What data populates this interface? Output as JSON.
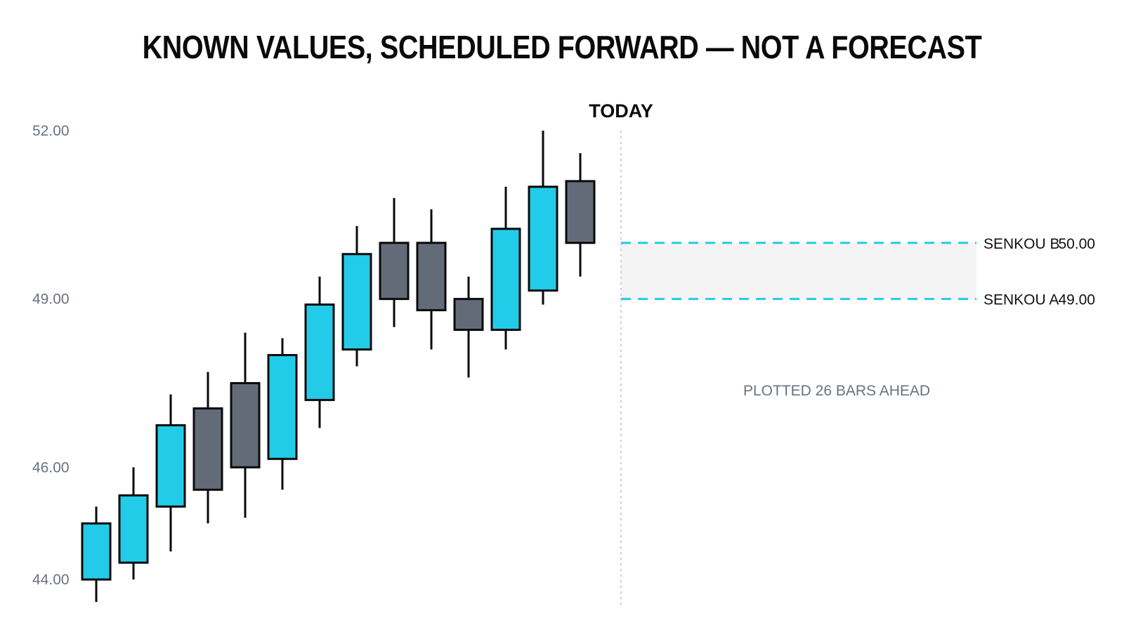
{
  "chart_data": {
    "type": "candlestick",
    "title": "KNOWN VALUES, SCHEDULED FORWARD — NOT A FORECAST",
    "ylim": [
      43.6,
      52.0
    ],
    "y_ticks": [
      {
        "value": 52.0,
        "label": "52.00"
      },
      {
        "value": 49.0,
        "label": "49.00"
      },
      {
        "value": 46.0,
        "label": "46.00"
      },
      {
        "value": 44.0,
        "label": "44.00"
      }
    ],
    "grid": false,
    "candles": [
      {
        "open": 44.0,
        "close": 45.0,
        "high": 45.3,
        "low": 43.6
      },
      {
        "open": 44.3,
        "close": 45.5,
        "high": 46.0,
        "low": 44.0
      },
      {
        "open": 45.3,
        "close": 46.75,
        "high": 47.3,
        "low": 44.5
      },
      {
        "open": 47.05,
        "close": 45.6,
        "high": 47.7,
        "low": 45.0
      },
      {
        "open": 47.5,
        "close": 46.0,
        "high": 48.4,
        "low": 45.1
      },
      {
        "open": 46.15,
        "close": 48.0,
        "high": 48.3,
        "low": 45.6
      },
      {
        "open": 47.2,
        "close": 48.9,
        "high": 49.4,
        "low": 46.7
      },
      {
        "open": 48.1,
        "close": 49.8,
        "high": 50.3,
        "low": 47.8
      },
      {
        "open": 50.0,
        "close": 49.0,
        "high": 50.8,
        "low": 48.5
      },
      {
        "open": 50.0,
        "close": 48.8,
        "high": 50.6,
        "low": 48.1
      },
      {
        "open": 49.0,
        "close": 48.45,
        "high": 49.4,
        "low": 47.6
      },
      {
        "open": 48.45,
        "close": 50.25,
        "high": 51.0,
        "low": 48.1
      },
      {
        "open": 49.15,
        "close": 51.0,
        "high": 52.0,
        "low": 48.9
      },
      {
        "open": 51.1,
        "close": 50.0,
        "high": 51.6,
        "low": 49.4
      }
    ],
    "today_label": "TODAY",
    "senkou": [
      {
        "name": "SENKOU B",
        "value": 50.0,
        "label": "50.00"
      },
      {
        "name": "SENKOU A",
        "value": 49.0,
        "label": "49.00"
      }
    ],
    "note": "PLOTTED 26 BARS AHEAD",
    "colors": {
      "up": "#22cce8",
      "down": "#646b78",
      "outline": "#0a0a0a",
      "senkou_line": "#22cce8",
      "cloud": "#f4f4f4",
      "today_line": "#cccccc",
      "tick_text": "#6b7280"
    }
  }
}
